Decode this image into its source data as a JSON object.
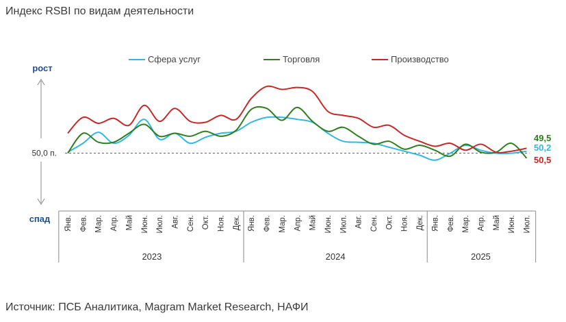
{
  "chart_data": {
    "type": "line",
    "title": "Индекс RSBI по видам деятельности",
    "source": "Источник: ПСБ Аналитика, Magram Market Research, НАФИ",
    "up_label": "рост",
    "down_label": "спад",
    "baseline_value": 50.0,
    "baseline_label": "50,0 п.",
    "months": [
      "Янв.",
      "Фев.",
      "Мар.",
      "Апр.",
      "Май",
      "Июн.",
      "Июл.",
      "Авг.",
      "Сен.",
      "Окт.",
      "Ноя.",
      "Дек.",
      "Янв.",
      "Фев.",
      "Мар.",
      "Апр.",
      "Май",
      "Июн.",
      "Июл.",
      "Авг.",
      "Сен.",
      "Окт.",
      "Ноя.",
      "Дек.",
      "Янв.",
      "Фев.",
      "Мар.",
      "Апр.",
      "Май",
      "Июн.",
      "Июл."
    ],
    "years": [
      {
        "label": "2023",
        "start": 0,
        "end": 11
      },
      {
        "label": "2024",
        "start": 12,
        "end": 23
      },
      {
        "label": "2025",
        "start": 24,
        "end": 30
      }
    ],
    "ylim": [
      47.5,
      58.5
    ],
    "series": [
      {
        "name": "Сфера услуг",
        "color": "#33b5e5",
        "end_label": "50,2",
        "values": [
          50.1,
          51.0,
          52.1,
          51.0,
          51.8,
          53.4,
          51.4,
          52.0,
          51.0,
          51.6,
          52.0,
          52.2,
          53.1,
          53.6,
          53.6,
          53.4,
          53.1,
          52.0,
          51.2,
          51.1,
          51.0,
          50.6,
          50.2,
          49.8,
          49.3,
          50.0,
          50.8,
          50.3,
          50.0,
          50.0,
          50.2
        ]
      },
      {
        "name": "Торговля",
        "color": "#2e7d1e",
        "end_label": "49,5",
        "values": [
          50.0,
          52.0,
          51.1,
          51.1,
          52.0,
          52.9,
          51.7,
          52.0,
          51.7,
          52.2,
          51.7,
          52.3,
          54.4,
          54.5,
          53.3,
          54.6,
          53.2,
          52.2,
          52.6,
          51.7,
          50.9,
          51.2,
          50.4,
          50.8,
          50.3,
          49.7,
          50.9,
          50.1,
          50.1,
          51.0,
          49.5
        ]
      },
      {
        "name": "Производство",
        "color": "#c62828",
        "end_label": "50,5",
        "values": [
          52.0,
          53.6,
          53.0,
          53.5,
          52.8,
          54.8,
          53.2,
          54.5,
          53.2,
          53.1,
          53.8,
          53.4,
          55.5,
          56.7,
          56.4,
          56.6,
          56.2,
          54.2,
          53.8,
          53.5,
          52.6,
          52.8,
          51.8,
          51.2,
          50.7,
          51.0,
          50.3,
          50.9,
          50.1,
          50.2,
          50.5
        ]
      }
    ]
  }
}
